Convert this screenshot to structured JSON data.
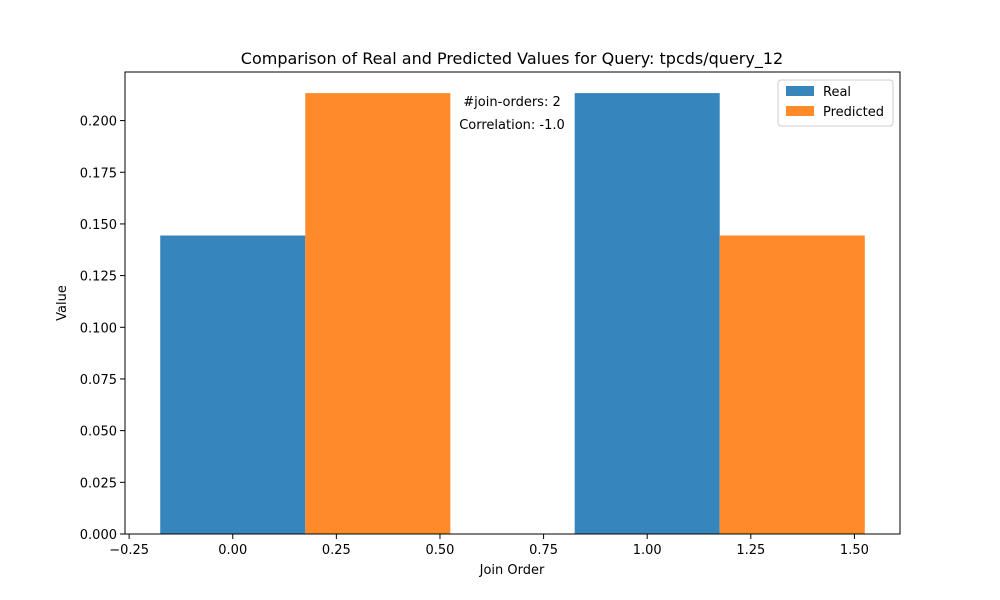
{
  "chart_data": {
    "type": "bar",
    "title": "Comparison of Real and Predicted Values for Query: tpcds/query_12",
    "xlabel": "Join Order",
    "ylabel": "Value",
    "xlim": [
      -0.26,
      1.61
    ],
    "ylim": [
      0,
      0.2235
    ],
    "xticks": [
      -0.25,
      0.0,
      0.25,
      0.5,
      0.75,
      1.0,
      1.25,
      1.5
    ],
    "xtick_labels": [
      "−0.25",
      "0.00",
      "0.25",
      "0.50",
      "0.75",
      "1.00",
      "1.25",
      "1.50"
    ],
    "yticks": [
      0.0,
      0.025,
      0.05,
      0.075,
      0.1,
      0.125,
      0.15,
      0.175,
      0.2
    ],
    "ytick_labels": [
      "0.000",
      "0.025",
      "0.050",
      "0.075",
      "0.100",
      "0.125",
      "0.150",
      "0.175",
      "0.200"
    ],
    "bar_width": 0.35,
    "x": [
      0,
      1
    ],
    "series": [
      {
        "name": "Real",
        "color": "#3785bd",
        "offset": 0,
        "values": [
          0.1444,
          0.2133
        ]
      },
      {
        "name": "Predicted",
        "color": "#ff8a2a",
        "offset": 0.35,
        "values": [
          0.2133,
          0.1444
        ]
      }
    ],
    "annotations": [
      "#join-orders: 2",
      "Correlation: -1.0"
    ],
    "legend": {
      "placement": "top-right"
    },
    "grid": false
  }
}
